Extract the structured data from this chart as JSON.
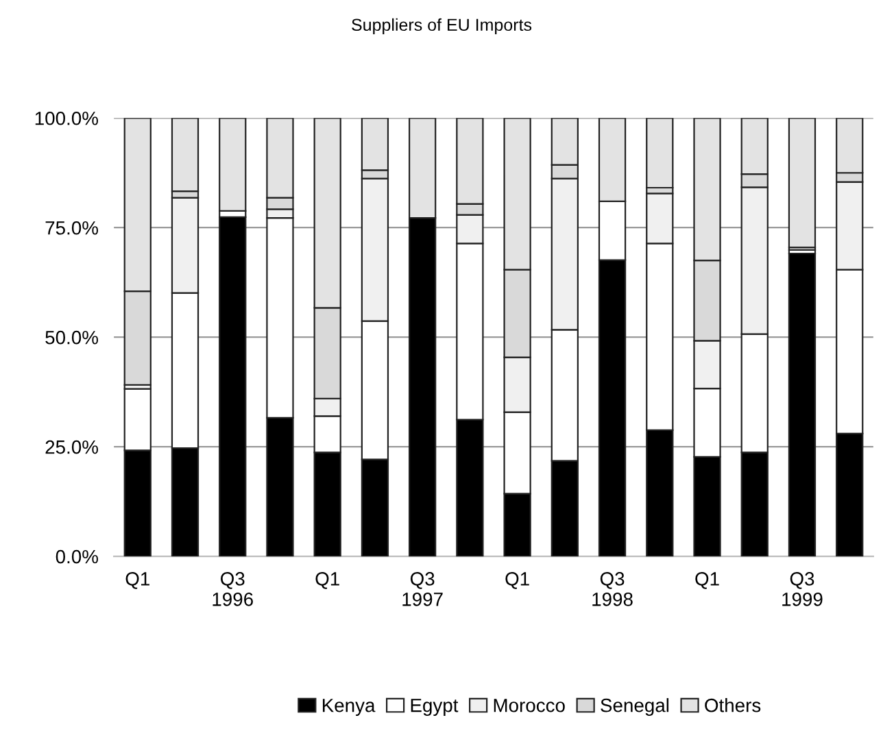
{
  "chart_data": {
    "type": "bar",
    "title": "Suppliers of EU Imports",
    "stacked": true,
    "categories": [
      "Q1",
      null,
      "Q3\n1996",
      null,
      "Q1",
      null,
      "Q3\n1997",
      null,
      "Q1",
      null,
      "Q3\n1998",
      null,
      "Q1",
      null,
      "Q3\n1999",
      null
    ],
    "series": [
      {
        "name": "Kenya",
        "color": "#000000",
        "values": [
          24.2,
          24.7,
          77.4,
          31.6,
          23.7,
          22.1,
          77.2,
          31.2,
          14.3,
          21.8,
          67.6,
          28.8,
          22.7,
          23.7,
          69.1,
          28.0
        ]
      },
      {
        "name": "Egypt",
        "color": "#ffffff",
        "values": [
          14.0,
          35.4,
          1.4,
          45.6,
          8.3,
          31.6,
          null,
          40.2,
          18.6,
          29.9,
          13.4,
          42.6,
          15.6,
          27.0,
          0.8,
          37.4
        ]
      },
      {
        "name": "Morocco",
        "color": "#f0f0f0",
        "values": [
          0.9,
          21.7,
          null,
          2.0,
          4.0,
          32.5,
          null,
          6.5,
          12.5,
          34.5,
          null,
          11.4,
          10.9,
          33.5,
          0.6,
          20.0
        ]
      },
      {
        "name": "Senegal",
        "color": "#d9d9d9",
        "values": [
          21.4,
          1.5,
          null,
          2.6,
          20.7,
          1.9,
          null,
          2.5,
          20.0,
          3.1,
          null,
          1.3,
          18.3,
          3.0,
          null,
          2.1
        ]
      },
      {
        "name": "Others",
        "color": "#e3e3e3",
        "values": [
          39.5,
          16.7,
          21.2,
          18.2,
          43.3,
          11.9,
          22.8,
          19.6,
          34.6,
          10.7,
          19.0,
          15.9,
          32.5,
          12.8,
          29.5,
          12.5
        ]
      }
    ],
    "ylim": [
      0,
      100
    ],
    "yticks": [
      {
        "value": 0,
        "label": "0.0%"
      },
      {
        "value": 25,
        "label": "25.0%"
      },
      {
        "value": 50,
        "label": "50.0%"
      },
      {
        "value": 75,
        "label": "75.0%"
      },
      {
        "value": 100,
        "label": "100.0%"
      }
    ],
    "grid": "y",
    "legend": "bottom"
  }
}
